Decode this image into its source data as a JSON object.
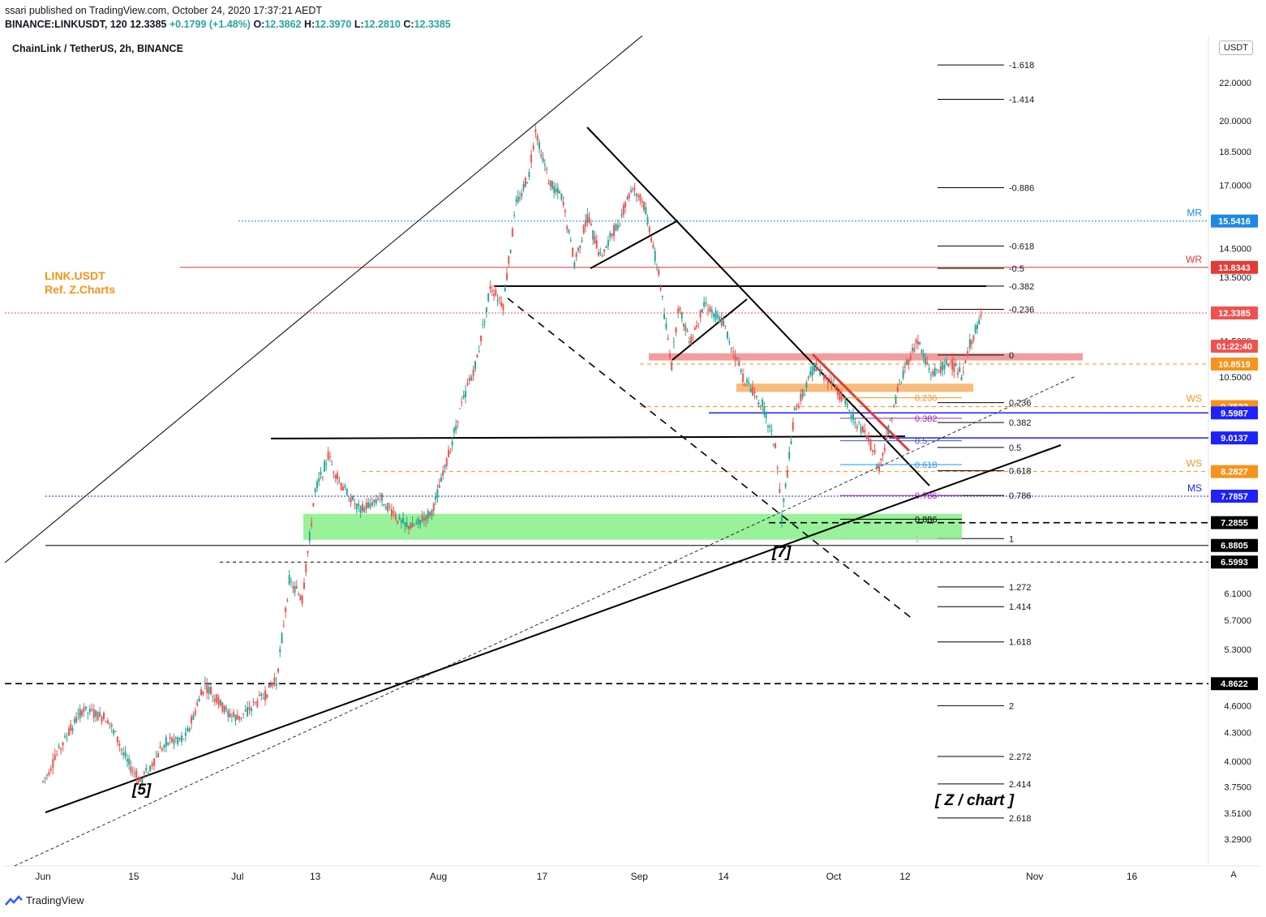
{
  "header": {
    "published": "ssari published on TradingView.com, October 24, 2020 17:37:21 AEDT",
    "symbol": "BINANCE:LINKUSDT, 120",
    "price": "12.3385",
    "change": "+0.1799 (+1.48%)",
    "open_label": "O:",
    "open": "12.3862",
    "high_label": "H:",
    "high": "12.3970",
    "low_label": "L:",
    "low": "12.2810",
    "close_label": "C:",
    "close": "12.3385"
  },
  "chart_title": "ChainLink / TetherUS, 2h, BINANCE",
  "annotation": {
    "line1": "LINK.USDT",
    "line2": "Ref. Z.Charts"
  },
  "currency_button": "USDT",
  "auto_button": "A",
  "footer": {
    "brand": "TradingView"
  },
  "colors": {
    "up": "#26a69a",
    "down": "#ef5350",
    "accent_orange": "#f7931a",
    "blue": "#1e22ff",
    "red": "#e53935",
    "green_zone": "#8ef08e"
  },
  "chart_data": {
    "type": "candlestick",
    "title": "ChainLink / TetherUS, 2h, BINANCE",
    "y_scale": "log",
    "ylim": [
      3.15,
      23.6
    ],
    "x_ticks": [
      "Jun",
      "15",
      "Jul",
      "13",
      "Aug",
      "17",
      "Sep",
      "14",
      "Oct",
      "12",
      "Nov",
      "16"
    ],
    "y_ticks": [
      "22.0000",
      "20.0000",
      "18.5000",
      "17.0000",
      "14.5000",
      "13.5000",
      "11.5000",
      "10.5000",
      "6.1000",
      "5.7000",
      "5.3000",
      "4.6000",
      "4.3000",
      "4.0000",
      "3.7500",
      "3.5100",
      "3.2900"
    ],
    "price_path": [
      [
        "2020-06-01",
        3.8
      ],
      [
        "2020-06-05",
        4.3
      ],
      [
        "2020-06-07",
        4.55
      ],
      [
        "2020-06-11",
        4.45
      ],
      [
        "2020-06-14",
        4.0
      ],
      [
        "2020-06-16",
        3.8
      ],
      [
        "2020-06-20",
        4.2
      ],
      [
        "2020-06-23",
        4.25
      ],
      [
        "2020-06-26",
        4.85
      ],
      [
        "2020-06-29",
        4.55
      ],
      [
        "2020-07-01",
        4.45
      ],
      [
        "2020-07-05",
        4.7
      ],
      [
        "2020-07-07",
        4.9
      ],
      [
        "2020-07-09",
        6.3
      ],
      [
        "2020-07-11",
        6.0
      ],
      [
        "2020-07-13",
        7.9
      ],
      [
        "2020-07-15",
        8.6
      ],
      [
        "2020-07-17",
        8.0
      ],
      [
        "2020-07-20",
        7.5
      ],
      [
        "2020-07-23",
        7.8
      ],
      [
        "2020-07-26",
        7.3
      ],
      [
        "2020-07-28",
        7.2
      ],
      [
        "2020-07-31",
        7.5
      ],
      [
        "2020-08-02",
        8.3
      ],
      [
        "2020-08-04",
        9.5
      ],
      [
        "2020-08-07",
        11.0
      ],
      [
        "2020-08-09",
        13.2
      ],
      [
        "2020-08-11",
        12.6
      ],
      [
        "2020-08-13",
        16.2
      ],
      [
        "2020-08-15",
        17.5
      ],
      [
        "2020-08-16",
        19.6
      ],
      [
        "2020-08-18",
        17.2
      ],
      [
        "2020-08-20",
        16.5
      ],
      [
        "2020-08-22",
        14.0
      ],
      [
        "2020-08-24",
        15.7
      ],
      [
        "2020-08-26",
        14.2
      ],
      [
        "2020-08-29",
        15.6
      ],
      [
        "2020-08-31",
        17.0
      ],
      [
        "2020-09-02",
        16.0
      ],
      [
        "2020-09-04",
        13.6
      ],
      [
        "2020-09-06",
        10.8
      ],
      [
        "2020-09-07",
        12.5
      ],
      [
        "2020-09-09",
        11.5
      ],
      [
        "2020-09-11",
        12.7
      ],
      [
        "2020-09-14",
        12.0
      ],
      [
        "2020-09-17",
        10.5
      ],
      [
        "2020-09-20",
        9.8
      ],
      [
        "2020-09-22",
        8.8
      ],
      [
        "2020-09-23",
        7.4
      ],
      [
        "2020-09-25",
        9.6
      ],
      [
        "2020-09-28",
        10.8
      ],
      [
        "2020-10-01",
        10.3
      ],
      [
        "2020-10-04",
        9.5
      ],
      [
        "2020-10-07",
        8.8
      ],
      [
        "2020-10-08",
        8.3
      ],
      [
        "2020-10-10",
        9.6
      ],
      [
        "2020-10-12",
        10.8
      ],
      [
        "2020-10-14",
        11.5
      ],
      [
        "2020-10-16",
        10.6
      ],
      [
        "2020-10-19",
        10.9
      ],
      [
        "2020-10-21",
        10.5
      ],
      [
        "2020-10-22",
        11.4
      ],
      [
        "2020-10-24",
        12.34
      ]
    ],
    "price_labels": [
      {
        "value": 15.5416,
        "text": "15.5416",
        "tag": "MR",
        "color": "#1e88e5"
      },
      {
        "value": 13.8343,
        "text": "13.8343",
        "tag": "WR",
        "color": "#e53935"
      },
      {
        "value": 12.3385,
        "text": "12.3385",
        "tag": "",
        "color": "#ef5350"
      },
      {
        "value": 11.35,
        "text": "01:22:40",
        "tag": "",
        "color": "#ef5350"
      },
      {
        "value": 10.8519,
        "text": "10.8519",
        "tag": "",
        "color": "#f7931a"
      },
      {
        "value": 9.7522,
        "text": "9.7522",
        "tag": "WS",
        "color": "#f7931a"
      },
      {
        "value": 9.5987,
        "text": "9.5987",
        "tag": "",
        "color": "#1e22ff"
      },
      {
        "value": 9.0137,
        "text": "9.0137",
        "tag": "",
        "color": "#1e22ff"
      },
      {
        "value": 8.2827,
        "text": "8.2827",
        "tag": "WS",
        "color": "#f7931a"
      },
      {
        "value": 7.7857,
        "text": "7.7857",
        "tag": "MS",
        "color": "#1e22ff"
      },
      {
        "value": 7.2855,
        "text": "7.2855",
        "tag": "",
        "color": "#000000"
      },
      {
        "value": 6.8805,
        "text": "6.8805",
        "tag": "",
        "color": "#000000"
      },
      {
        "value": 6.5993,
        "text": "6.5993",
        "tag": "",
        "color": "#000000"
      },
      {
        "value": 4.8622,
        "text": "4.8622",
        "tag": "",
        "color": "#000000"
      }
    ],
    "fib_extension": [
      {
        "value": 23.0,
        "label": "-1.618"
      },
      {
        "value": 21.1,
        "label": "-1.414"
      },
      {
        "value": 16.9,
        "label": "-0.886"
      },
      {
        "value": 14.6,
        "label": "-0.618"
      },
      {
        "value": 13.8,
        "label": "-0.5"
      },
      {
        "value": 13.2,
        "label": "-0.382"
      },
      {
        "value": 12.45,
        "label": "-0.236"
      },
      {
        "value": 11.1,
        "label": "0"
      },
      {
        "value": 9.85,
        "label": "0.236"
      },
      {
        "value": 9.37,
        "label": "0.382"
      },
      {
        "value": 8.8,
        "label": "0.5"
      },
      {
        "value": 8.3,
        "label": "0.618"
      },
      {
        "value": 7.8,
        "label": "0.786"
      },
      {
        "value": 7.0,
        "label": "1"
      },
      {
        "value": 6.2,
        "label": "1.272"
      },
      {
        "value": 5.9,
        "label": "1.414"
      },
      {
        "value": 5.4,
        "label": "1.618"
      },
      {
        "value": 4.6,
        "label": "2"
      },
      {
        "value": 4.05,
        "label": "2.272"
      },
      {
        "value": 3.78,
        "label": "2.414"
      },
      {
        "value": 3.47,
        "label": "2.618"
      }
    ],
    "fib_retrace": [
      {
        "value": 9.97,
        "label": "0.236",
        "color": "#f7931a"
      },
      {
        "value": 9.47,
        "label": "0.382",
        "color": "#9c27b0"
      },
      {
        "value": 8.95,
        "label": "0.5",
        "color": "#3f51b5"
      },
      {
        "value": 8.43,
        "label": "0.618",
        "color": "#2196f3"
      },
      {
        "value": 7.8,
        "label": "0.786",
        "color": "#9c27b0"
      },
      {
        "value": 7.35,
        "label": "0.886",
        "color": "#000000"
      },
      {
        "value": 7.0,
        "label": "1",
        "color": "#a5d6a7"
      }
    ],
    "wave_labels": [
      "[5]",
      "[7]"
    ],
    "watermark": "[ Z / chart ]"
  }
}
